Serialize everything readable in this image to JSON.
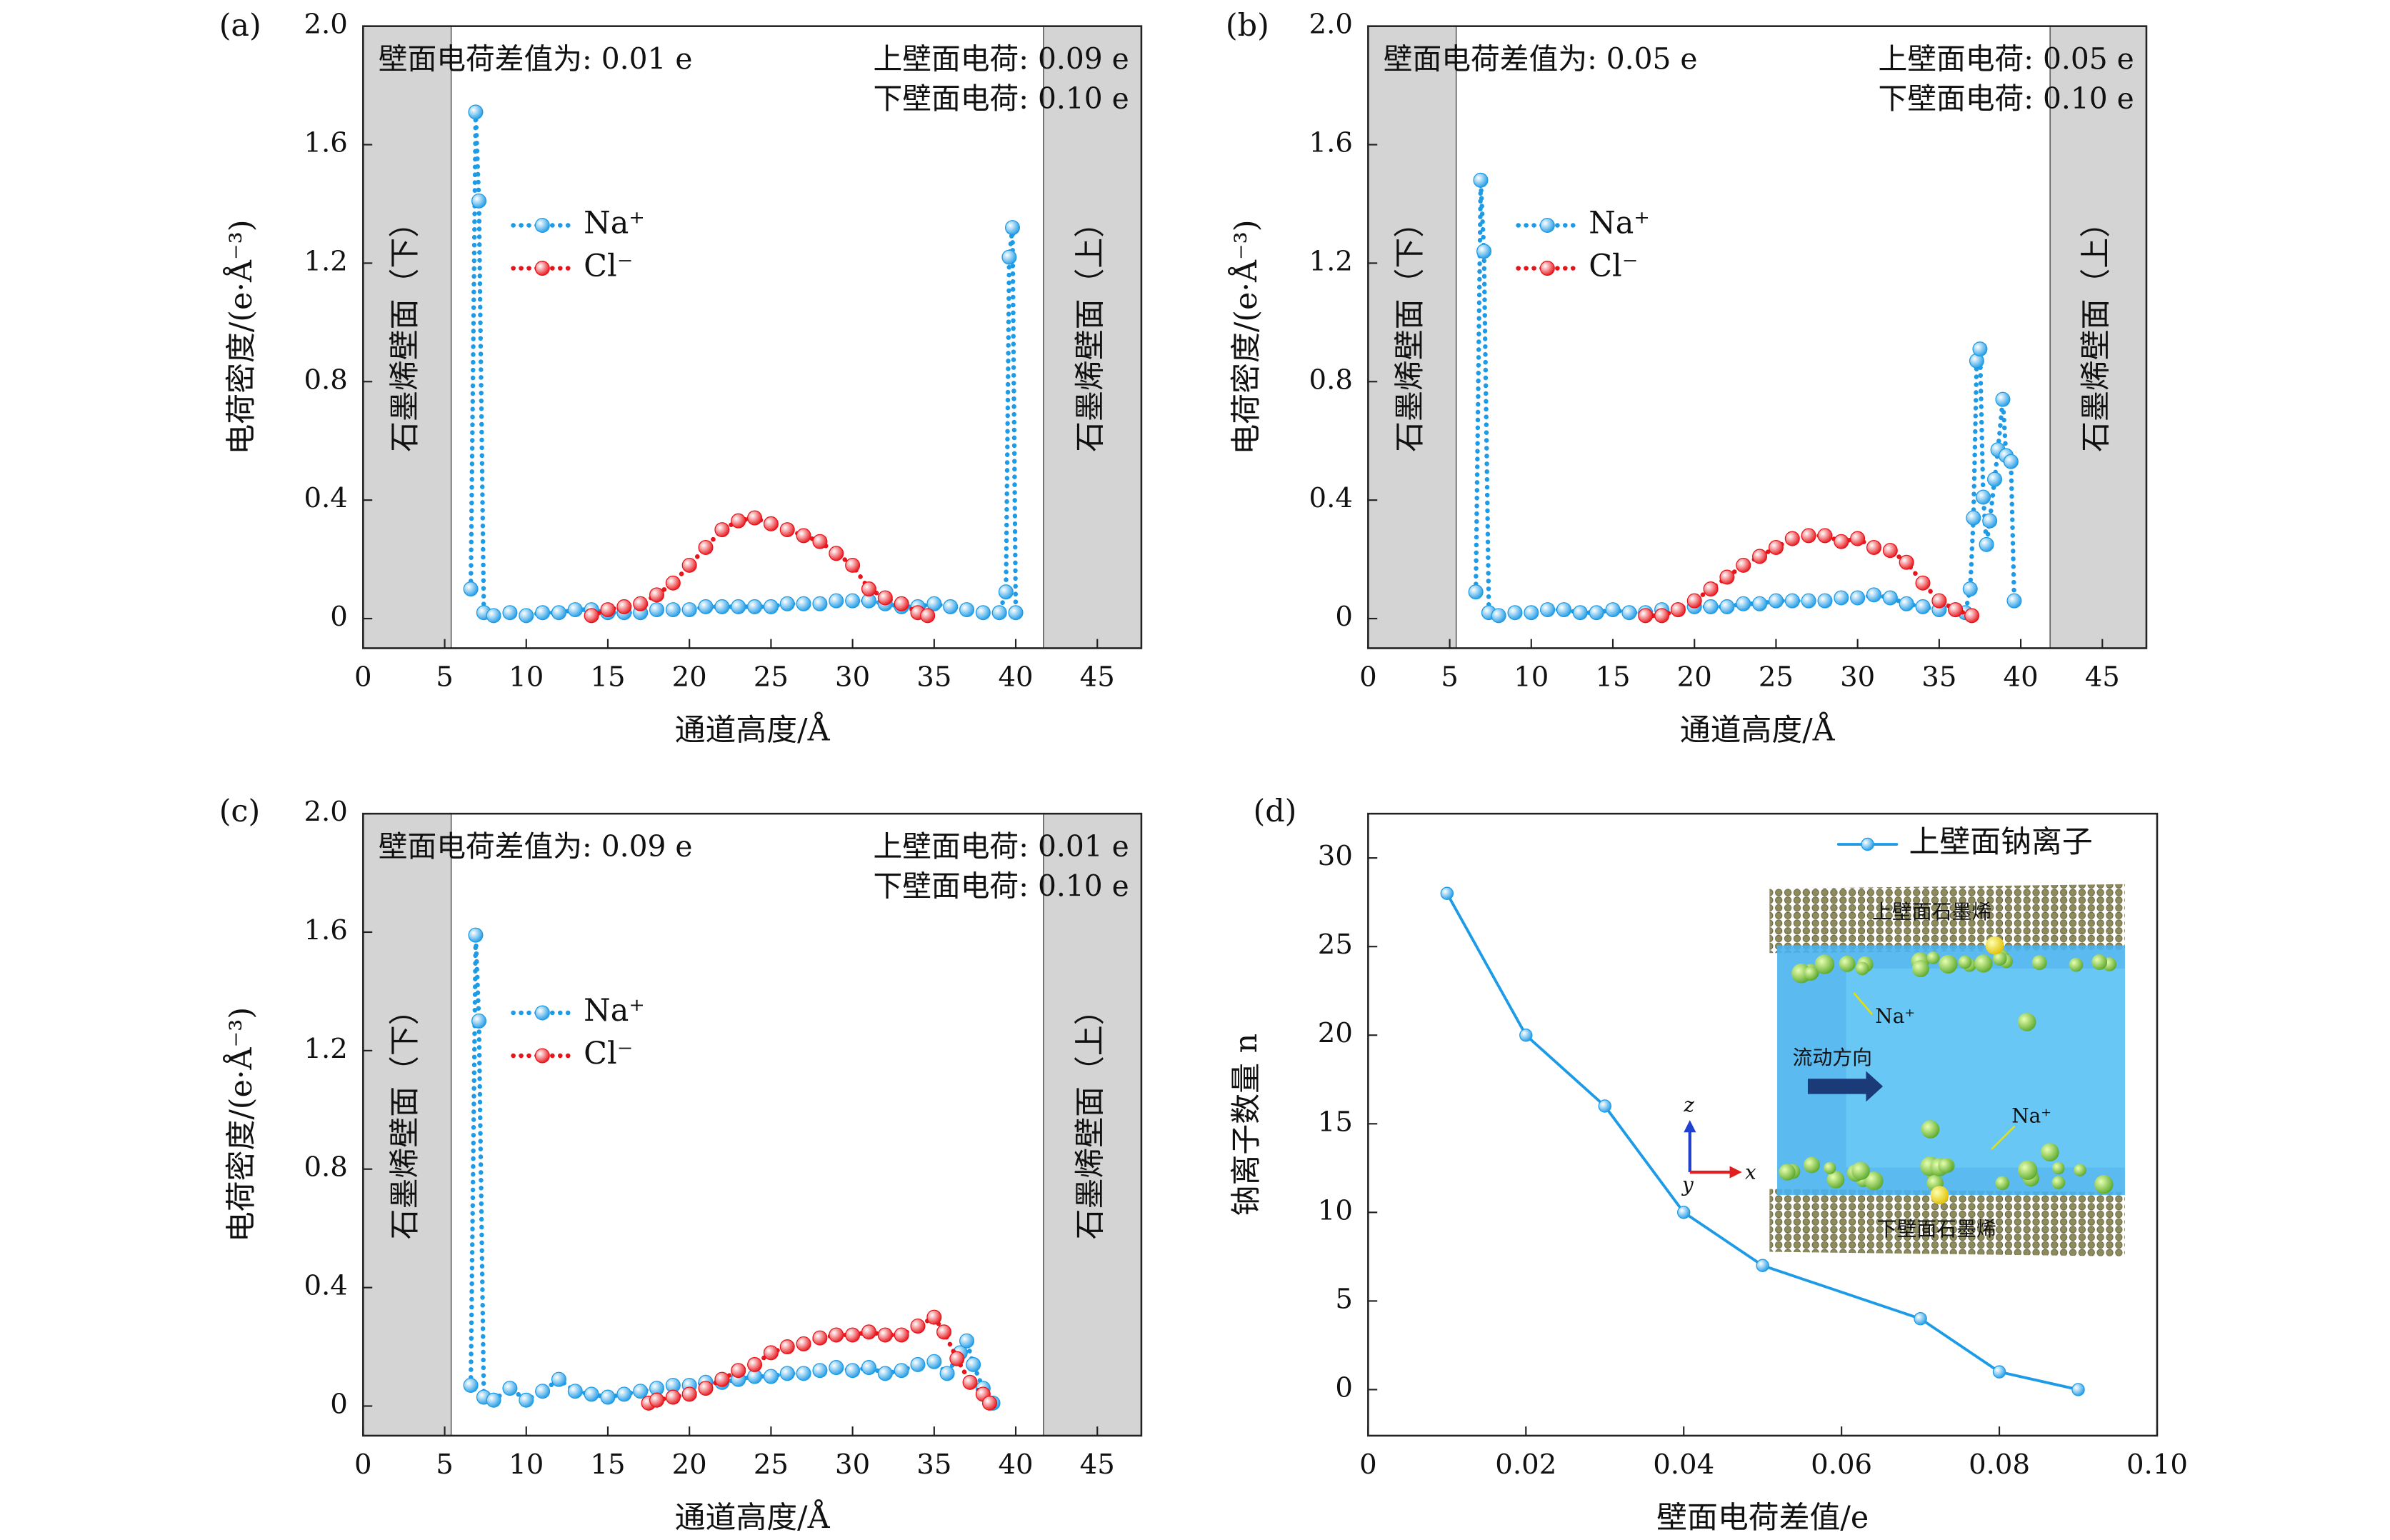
{
  "chart_data": [
    {
      "type": "line",
      "panel_label": "(a)",
      "x_label": "通道高度/Å",
      "y_label": "电荷密度/(e·Å⁻³)",
      "xlim": [
        0,
        47.7
      ],
      "ylim": [
        -0.1,
        2.0
      ],
      "xticks": [
        0,
        5,
        10,
        15,
        20,
        25,
        30,
        35,
        40,
        45
      ],
      "yticks": [
        0,
        0.4,
        0.8,
        1.2,
        1.6,
        {
          "value": 2,
          "label": "2.0"
        }
      ],
      "walls": [
        {
          "label": "石墨烯壁面（下）",
          "range": [
            0,
            5.4
          ]
        },
        {
          "label": "石墨烯壁面（上）",
          "range": [
            41.7,
            47.7
          ]
        }
      ],
      "annotations": [
        "壁面电荷差值为: 0.01 e",
        "上壁面电荷: 0.09 e",
        "下壁面电荷: 0.10 e"
      ],
      "series": [
        {
          "name": "Na⁺",
          "color": "#1e9be6",
          "line_style": "dotted",
          "x": [
            6.6,
            6.9,
            7.1,
            7.4,
            8,
            9,
            10,
            11,
            12,
            13,
            14,
            15,
            16,
            17,
            18,
            19,
            20,
            21,
            22,
            23,
            24,
            25,
            26,
            27,
            28,
            29,
            30,
            31,
            32,
            33,
            34,
            35,
            36,
            37,
            38,
            39,
            39.4,
            39.6,
            39.8,
            40.0
          ],
          "values": [
            0.1,
            1.71,
            1.41,
            0.02,
            0.01,
            0.02,
            0.01,
            0.02,
            0.02,
            0.03,
            0.03,
            0.02,
            0.02,
            0.02,
            0.03,
            0.03,
            0.03,
            0.04,
            0.04,
            0.04,
            0.04,
            0.04,
            0.05,
            0.05,
            0.05,
            0.06,
            0.06,
            0.06,
            0.05,
            0.04,
            0.04,
            0.05,
            0.04,
            0.03,
            0.02,
            0.02,
            0.09,
            1.22,
            1.32,
            0.02
          ]
        },
        {
          "name": "Cl⁻",
          "color": "#e8141a",
          "line_style": "dotted",
          "x": [
            14,
            15,
            16,
            17,
            18,
            19,
            20,
            21,
            22,
            23,
            24,
            25,
            26,
            27,
            28,
            29,
            30,
            31,
            32,
            33,
            34,
            34.6
          ],
          "values": [
            0.01,
            0.03,
            0.04,
            0.05,
            0.08,
            0.12,
            0.18,
            0.24,
            0.3,
            0.33,
            0.34,
            0.32,
            0.3,
            0.28,
            0.26,
            0.22,
            0.18,
            0.1,
            0.07,
            0.05,
            0.02,
            0.01
          ]
        }
      ]
    },
    {
      "type": "line",
      "panel_label": "(b)",
      "x_label": "通道高度/Å",
      "y_label": "电荷密度/(e·Å⁻³)",
      "xlim": [
        0,
        47.7
      ],
      "ylim": [
        -0.1,
        2.0
      ],
      "xticks": [
        0,
        5,
        10,
        15,
        20,
        25,
        30,
        35,
        40,
        45
      ],
      "yticks": [
        0,
        0.4,
        0.8,
        1.2,
        1.6,
        {
          "value": 2,
          "label": "2.0"
        }
      ],
      "walls": [
        {
          "label": "石墨烯壁面（下）",
          "range": [
            0,
            5.4
          ]
        },
        {
          "label": "石墨烯壁面（上）",
          "range": [
            41.8,
            47.7
          ]
        }
      ],
      "annotations": [
        "壁面电荷差值为: 0.05 e",
        "上壁面电荷: 0.05 e",
        "下壁面电荷: 0.10 e"
      ],
      "series": [
        {
          "name": "Na⁺",
          "color": "#1e9be6",
          "line_style": "dotted",
          "x": [
            6.6,
            6.9,
            7.1,
            7.4,
            8,
            9,
            10,
            11,
            12,
            13,
            14,
            15,
            16,
            17,
            18,
            19,
            20,
            21,
            22,
            23,
            24,
            25,
            26,
            27,
            28,
            29,
            30,
            31,
            32,
            33,
            34,
            35,
            36,
            36.6,
            36.9,
            37.1,
            37.3,
            37.5,
            37.7,
            37.9,
            38.1,
            38.4,
            38.6,
            38.9,
            39.1,
            39.4,
            39.6
          ],
          "values": [
            0.09,
            1.48,
            1.24,
            0.02,
            0.01,
            0.02,
            0.02,
            0.03,
            0.03,
            0.02,
            0.02,
            0.03,
            0.02,
            0.02,
            0.03,
            0.03,
            0.04,
            0.04,
            0.04,
            0.05,
            0.05,
            0.06,
            0.06,
            0.06,
            0.06,
            0.07,
            0.07,
            0.08,
            0.07,
            0.05,
            0.04,
            0.03,
            0.03,
            0.02,
            0.1,
            0.34,
            0.87,
            0.91,
            0.41,
            0.25,
            0.33,
            0.47,
            0.57,
            0.74,
            0.55,
            0.53,
            0.06
          ]
        },
        {
          "name": "Cl⁻",
          "color": "#e8141a",
          "line_style": "dotted",
          "x": [
            17,
            18,
            19,
            20,
            21,
            22,
            23,
            24,
            25,
            26,
            27,
            28,
            29,
            30,
            31,
            32,
            33,
            34,
            35,
            36,
            37
          ],
          "values": [
            0.01,
            0.01,
            0.03,
            0.06,
            0.1,
            0.14,
            0.18,
            0.21,
            0.24,
            0.27,
            0.28,
            0.28,
            0.26,
            0.27,
            0.24,
            0.23,
            0.19,
            0.12,
            0.06,
            0.03,
            0.01
          ]
        }
      ]
    },
    {
      "type": "line",
      "panel_label": "(c)",
      "x_label": "通道高度/Å",
      "y_label": "电荷密度/(e·Å⁻³)",
      "xlim": [
        0,
        47.7
      ],
      "ylim": [
        -0.1,
        2.0
      ],
      "xticks": [
        0,
        5,
        10,
        15,
        20,
        25,
        30,
        35,
        40,
        45
      ],
      "yticks": [
        0,
        0.4,
        0.8,
        1.2,
        1.6,
        {
          "value": 2,
          "label": "2.0"
        }
      ],
      "walls": [
        {
          "label": "石墨烯壁面（下）",
          "range": [
            0,
            5.4
          ]
        },
        {
          "label": "石墨烯壁面（上）",
          "range": [
            41.7,
            47.7
          ]
        }
      ],
      "annotations": [
        "壁面电荷差值为: 0.09 e",
        "上壁面电荷: 0.01 e",
        "下壁面电荷: 0.10 e"
      ],
      "series": [
        {
          "name": "Na⁺",
          "color": "#1e9be6",
          "line_style": "dotted",
          "x": [
            6.6,
            6.9,
            7.1,
            7.4,
            8,
            9,
            10,
            11,
            12,
            13,
            14,
            15,
            16,
            17,
            18,
            19,
            20,
            21,
            22,
            23,
            24,
            25,
            26,
            27,
            28,
            29,
            30,
            31,
            32,
            33,
            34,
            35,
            35.8,
            36.6,
            37,
            37.4,
            38,
            38.6
          ],
          "values": [
            0.07,
            1.59,
            1.3,
            0.03,
            0.02,
            0.06,
            0.02,
            0.05,
            0.09,
            0.05,
            0.04,
            0.03,
            0.04,
            0.05,
            0.06,
            0.07,
            0.07,
            0.08,
            0.08,
            0.09,
            0.1,
            0.1,
            0.11,
            0.11,
            0.12,
            0.13,
            0.12,
            0.13,
            0.11,
            0.12,
            0.14,
            0.15,
            0.11,
            0.18,
            0.22,
            0.14,
            0.06,
            0.01
          ]
        },
        {
          "name": "Cl⁻",
          "color": "#e8141a",
          "line_style": "dotted",
          "x": [
            17.5,
            18,
            19,
            20,
            21,
            22,
            23,
            24,
            25,
            26,
            27,
            28,
            29,
            30,
            31,
            32,
            33,
            34,
            35,
            35.6,
            36.4,
            37.2,
            38,
            38.4
          ],
          "values": [
            0.01,
            0.02,
            0.03,
            0.04,
            0.06,
            0.09,
            0.12,
            0.14,
            0.18,
            0.2,
            0.21,
            0.23,
            0.24,
            0.24,
            0.25,
            0.24,
            0.24,
            0.27,
            0.3,
            0.25,
            0.16,
            0.08,
            0.04,
            0.01
          ]
        }
      ]
    },
    {
      "type": "line",
      "panel_label": "(d)",
      "x_label": "壁面电荷差值/e",
      "y_label": "钠离子数量 n",
      "xlim": [
        0,
        0.1
      ],
      "ylim": [
        -2.6,
        32.5
      ],
      "xticks": [
        0,
        0.02,
        0.04,
        0.06,
        0.08,
        {
          "value": 0.1,
          "label": "0.10"
        }
      ],
      "yticks": [
        0,
        5,
        10,
        15,
        20,
        25,
        30
      ],
      "series": [
        {
          "name": "上壁面钠离子",
          "color": "#1e9be6",
          "line_style": "solid",
          "x": [
            0.01,
            0.02,
            0.03,
            0.04,
            0.05,
            0.07,
            0.08,
            0.09
          ],
          "values": [
            28,
            20,
            16,
            10,
            7,
            4,
            1,
            0
          ]
        }
      ],
      "inset": {
        "top_layer": "上壁面石墨烯",
        "bottom_layer": "下壁面石墨烯",
        "ion_top": "Na⁺",
        "ion_bottom": "Na⁺",
        "flow": "流动方向",
        "axis_z": "z",
        "axis_y": "y",
        "axis_x": "x"
      }
    }
  ]
}
